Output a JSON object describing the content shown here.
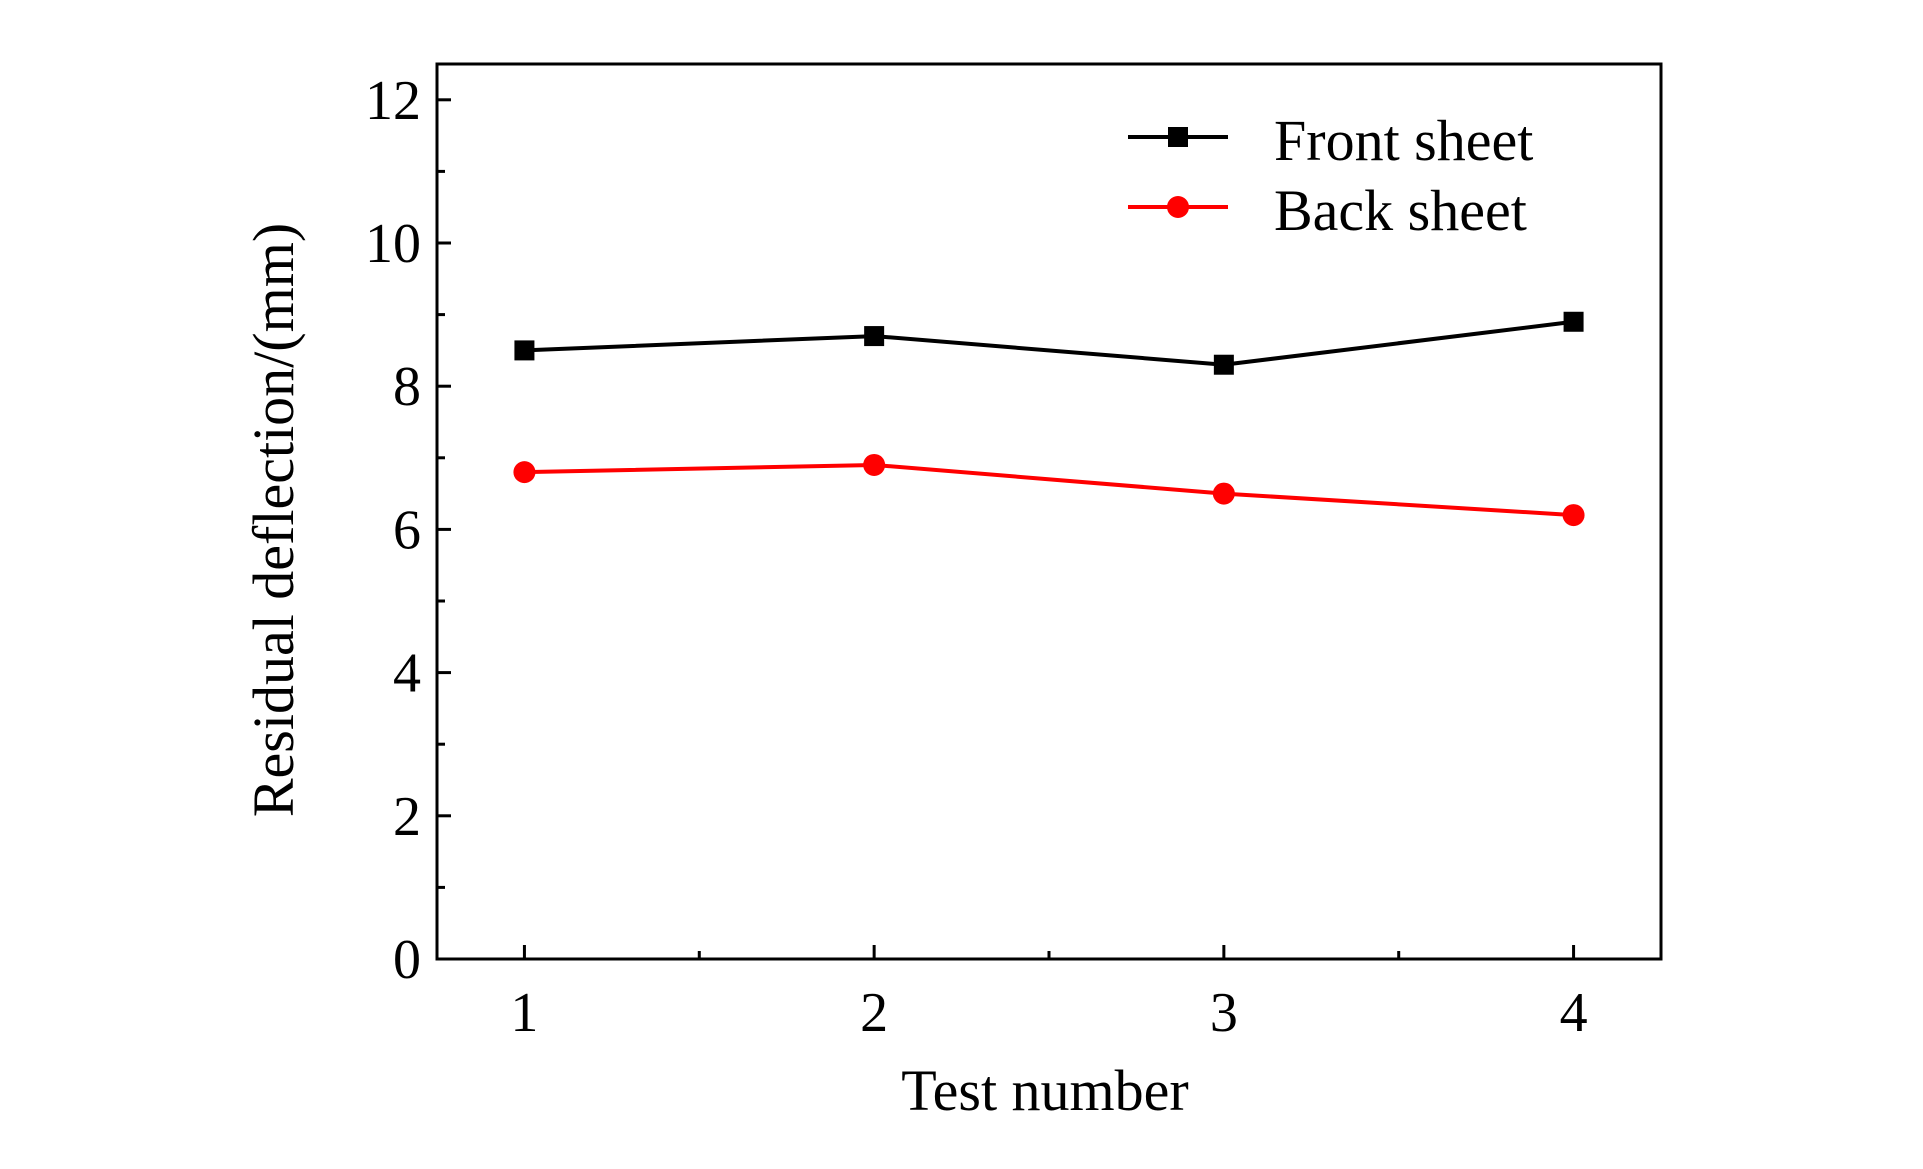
{
  "chart_data": {
    "type": "line",
    "title": "",
    "xlabel": "Test number",
    "ylabel": "Residual deflection/(mm)",
    "x": [
      1,
      2,
      3,
      4
    ],
    "xlim": [
      0.75,
      4.25
    ],
    "ylim": [
      0,
      12.5
    ],
    "xticks": [
      "1",
      "2",
      "3",
      "4"
    ],
    "yticks": [
      "0",
      "2",
      "4",
      "6",
      "8",
      "10",
      "12"
    ],
    "grid": false,
    "legend_position": "top-right",
    "series": [
      {
        "name": "Front sheet",
        "values": [
          8.5,
          8.7,
          8.3,
          8.9
        ],
        "color": "#000000",
        "marker": "square"
      },
      {
        "name": "Back sheet",
        "values": [
          6.8,
          6.9,
          6.5,
          6.2
        ],
        "color": "#ff0000",
        "marker": "circle"
      }
    ]
  }
}
